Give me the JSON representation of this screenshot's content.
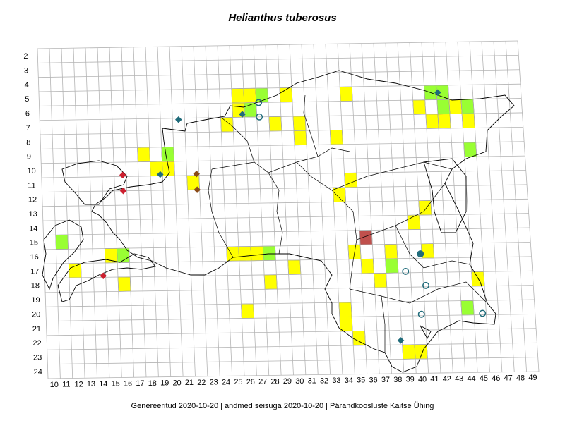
{
  "title": "Helianthus tuberosus",
  "footer": "Genereeritud 2020-10-20  |  andmed seisuga 2020-10-20  |  Pärandkoosluste Kaitse Ühing",
  "grid": {
    "col_labels": [
      "10",
      "11",
      "12",
      "13",
      "14",
      "15",
      "16",
      "17",
      "18",
      "19",
      "20",
      "21",
      "22",
      "23",
      "24",
      "25",
      "26",
      "27",
      "28",
      "29",
      "30",
      "31",
      "32",
      "33",
      "34",
      "35",
      "36",
      "37",
      "38",
      "39",
      "40",
      "41",
      "42",
      "43",
      "44",
      "45",
      "46",
      "47",
      "48",
      "49"
    ],
    "row_labels": [
      "2",
      "3",
      "4",
      "5",
      "6",
      "7",
      "8",
      "9",
      "10",
      "11",
      "12",
      "13",
      "14",
      "15",
      "16",
      "17",
      "18",
      "19",
      "20",
      "21",
      "22",
      "23",
      "24"
    ]
  },
  "colors": {
    "yellow": "#ffff00",
    "green": "#99ff33",
    "dark_red": "#c0504d",
    "teal": "#1f6b7a",
    "red": "#cc1f2f",
    "brown": "#8a4b17",
    "grid_line": "#b4b4b4",
    "outline": "#000000"
  },
  "cells": {
    "yellow": [
      [
        26,
        5
      ],
      [
        27,
        5
      ],
      [
        30,
        5
      ],
      [
        35,
        5
      ],
      [
        42,
        5
      ],
      [
        41,
        6
      ],
      [
        44,
        6
      ],
      [
        45,
        7
      ],
      [
        25,
        7
      ],
      [
        29,
        7
      ],
      [
        31,
        7
      ],
      [
        31,
        8
      ],
      [
        34,
        8
      ],
      [
        18,
        9
      ],
      [
        20,
        9
      ],
      [
        19,
        10
      ],
      [
        20,
        10
      ],
      [
        22,
        11
      ],
      [
        35,
        11
      ],
      [
        34,
        12
      ],
      [
        41,
        13
      ],
      [
        40,
        14
      ],
      [
        15,
        16
      ],
      [
        25,
        16
      ],
      [
        26,
        16
      ],
      [
        27,
        16
      ],
      [
        16,
        18
      ],
      [
        26,
        20
      ],
      [
        38,
        16
      ],
      [
        34,
        20
      ],
      [
        28,
        18
      ],
      [
        36,
        17
      ],
      [
        12,
        17
      ],
      [
        30,
        17
      ],
      [
        37,
        18
      ],
      [
        45,
        18
      ],
      [
        34,
        21
      ],
      [
        35,
        22
      ],
      [
        39,
        23
      ],
      [
        40,
        23
      ],
      [
        42,
        7
      ],
      [
        43,
        7
      ],
      [
        26,
        6
      ],
      [
        41,
        16
      ],
      [
        35,
        16
      ]
    ],
    "green": [
      [
        28,
        5
      ],
      [
        42,
        5
      ],
      [
        43,
        5
      ],
      [
        43,
        6
      ],
      [
        45,
        6
      ],
      [
        27,
        6
      ],
      [
        20,
        9
      ],
      [
        11,
        15
      ],
      [
        16,
        16
      ],
      [
        28,
        16
      ],
      [
        38,
        17
      ],
      [
        44,
        20
      ],
      [
        45,
        9
      ]
    ],
    "dark_red": [
      [
        36,
        15
      ]
    ]
  },
  "markers": {
    "teal_diamond": [
      [
        42.6,
        5.0
      ],
      [
        21.0,
        6.6
      ],
      [
        26.3,
        6.3
      ],
      [
        19.3,
        10.4
      ],
      [
        38.4,
        22.2
      ],
      [
        40.4,
        16.2
      ]
    ],
    "red_diamond": [
      [
        16.2,
        10.4
      ],
      [
        16.2,
        11.5
      ],
      [
        14.3,
        17.4
      ]
    ],
    "brown_diamond": [
      [
        22.3,
        10.4
      ],
      [
        22.3,
        11.5
      ]
    ],
    "open_circle": [
      [
        27.7,
        5.5
      ],
      [
        27.7,
        6.5
      ],
      [
        40.4,
        16.2
      ],
      [
        39.1,
        17.4
      ],
      [
        40.7,
        18.4
      ],
      [
        40.2,
        20.4
      ],
      [
        45.2,
        20.4
      ]
    ]
  }
}
